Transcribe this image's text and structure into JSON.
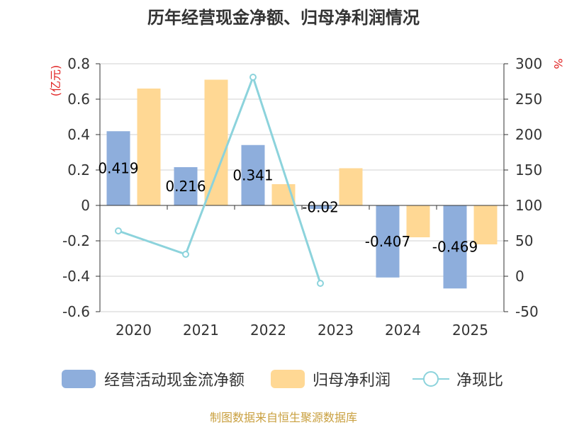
{
  "chart_data": {
    "type": "bar",
    "title": "历年经营现金净额、归母净利润情况",
    "categories": [
      "2020",
      "2021",
      "2022",
      "2023",
      "2024",
      "2025"
    ],
    "series": [
      {
        "name": "经营活动现金流净额",
        "kind": "bar",
        "axis": "left",
        "color": "#8eaedc",
        "values": [
          0.419,
          0.216,
          0.341,
          -0.02,
          -0.407,
          -0.469
        ],
        "labels": [
          "0.419",
          "0.216",
          "0.341",
          "-0.02",
          "-0.407",
          "-0.469"
        ]
      },
      {
        "name": "归母净利润",
        "kind": "bar",
        "axis": "left",
        "color": "#ffd894",
        "values": [
          0.66,
          0.71,
          0.12,
          0.21,
          -0.18,
          -0.22
        ]
      },
      {
        "name": "净现比",
        "kind": "line",
        "axis": "right",
        "color": "#8cd3dc",
        "values": [
          64,
          31,
          281,
          -10,
          null,
          null
        ]
      }
    ],
    "y_left": {
      "unit": "(亿元)",
      "min": -0.6,
      "max": 0.8,
      "ticks": [
        "0.8",
        "0.6",
        "0.4",
        "0.2",
        "0",
        "-0.2",
        "-0.4",
        "-0.6"
      ]
    },
    "y_right": {
      "unit": "%",
      "min": -50,
      "max": 300,
      "ticks": [
        "300",
        "250",
        "200",
        "150",
        "100",
        "50",
        "0",
        "-50"
      ]
    },
    "legend_position": "bottom",
    "grid": true
  },
  "source": "制图数据来自恒生聚源数据库",
  "colors": {
    "unit_red": "#e02020",
    "source_gold": "#c9a040",
    "grid": "#d0d0d0"
  }
}
